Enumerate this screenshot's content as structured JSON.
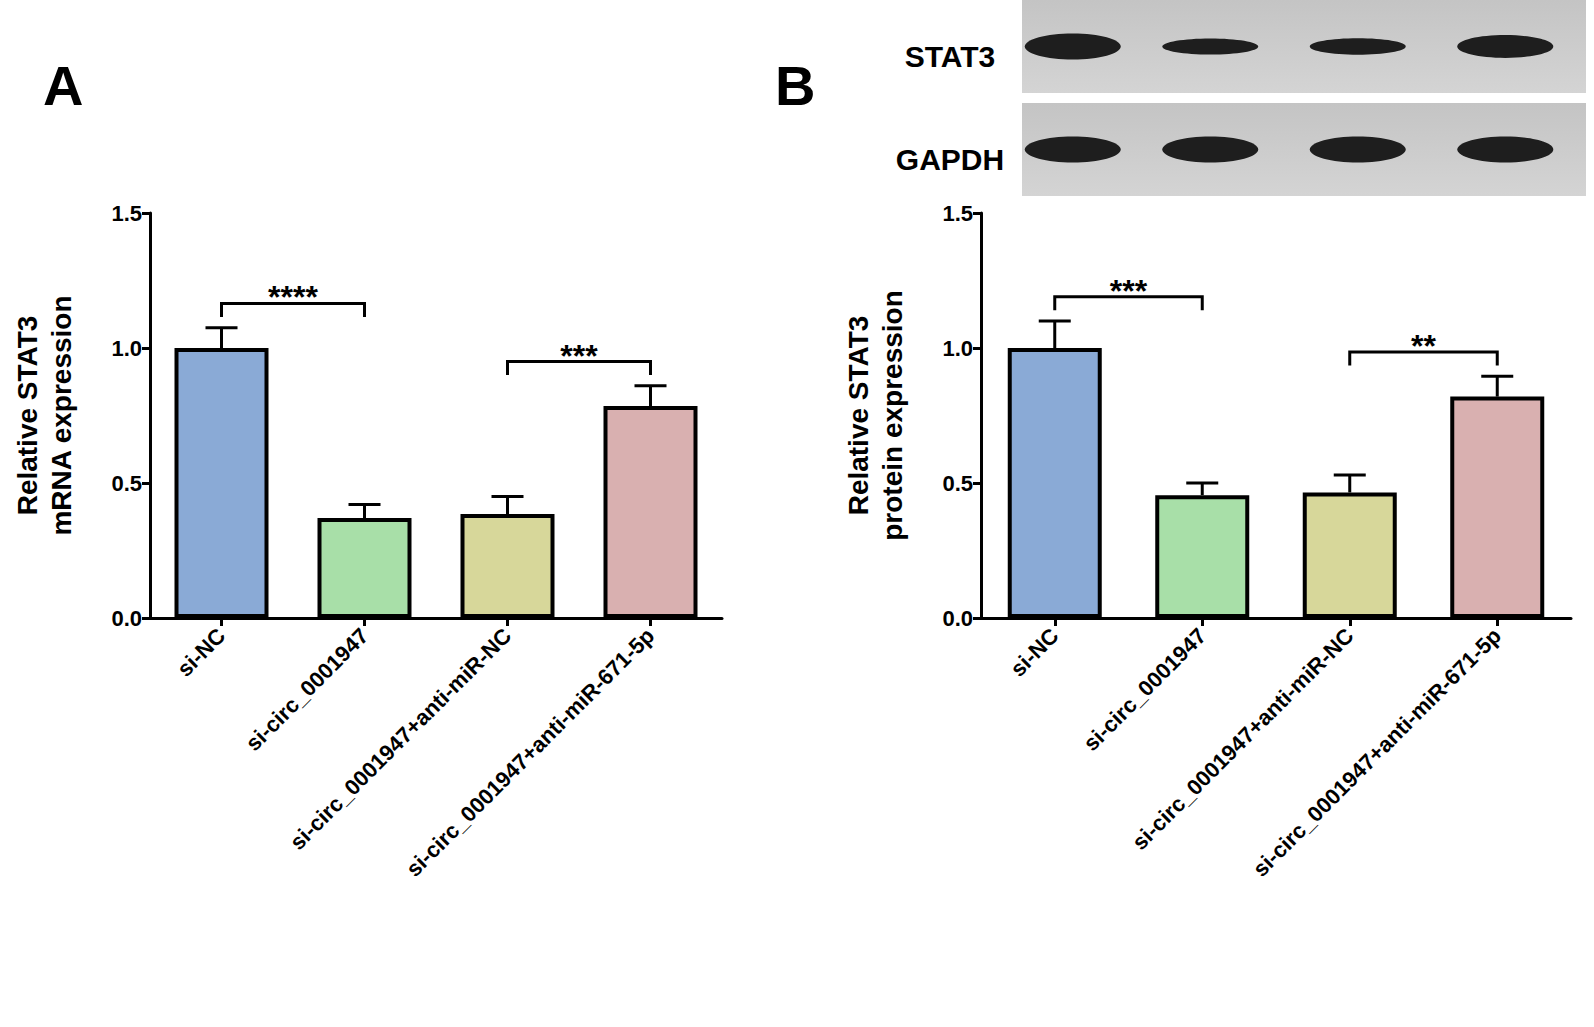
{
  "chart_data": [
    {
      "type": "bar",
      "title": "A",
      "y_label": "Relative STAT3\nmRNA expression",
      "categories": [
        "si-NC",
        "si-circ_0001947",
        "si-circ_0001947+anti-miR-NC",
        "si-circ_0001947+anti-miR-671-5p"
      ],
      "values": [
        1.0,
        0.37,
        0.385,
        0.785
      ],
      "errors": [
        0.075,
        0.05,
        0.065,
        0.075
      ],
      "colors": [
        "#8aaad6",
        "#a8dfa8",
        "#d7d79a",
        "#d9b0b0"
      ],
      "ylim": [
        0,
        1.5
      ],
      "yticks": [
        {
          "value": 0,
          "label": "0.0"
        },
        {
          "value": 0.5,
          "label": "0.5"
        },
        {
          "value": 1,
          "label": "1.0"
        },
        {
          "value": 1.5,
          "label": "1.5"
        }
      ],
      "grid": false,
      "annotations": [
        {
          "text": "****",
          "between": [
            "si-NC",
            "si-circ_0001947"
          ]
        },
        {
          "text": "***",
          "between": [
            "si-circ_0001947+anti-miR-NC",
            "si-circ_0001947+anti-miR-671-5p"
          ]
        }
      ]
    },
    {
      "type": "bar",
      "title": "B",
      "y_label": "Relative STAT3\nprotein expression",
      "categories": [
        "si-NC",
        "si-circ_0001947",
        "si-circ_0001947+anti-miR-NC",
        "si-circ_0001947+anti-miR-671-5p"
      ],
      "values": [
        1.0,
        0.455,
        0.465,
        0.82
      ],
      "errors": [
        0.1,
        0.045,
        0.065,
        0.075
      ],
      "colors": [
        "#8aaad6",
        "#a8dfa8",
        "#d7d79a",
        "#d9b0b0"
      ],
      "ylim": [
        0,
        1.5
      ],
      "yticks": [
        {
          "value": 0,
          "label": "0.0"
        },
        {
          "value": 0.5,
          "label": "0.5"
        },
        {
          "value": 1,
          "label": "1.0"
        },
        {
          "value": 1.5,
          "label": "1.5"
        }
      ],
      "grid": false,
      "annotations": [
        {
          "text": "***",
          "between": [
            "si-NC",
            "si-circ_0001947"
          ]
        },
        {
          "text": "**",
          "between": [
            "si-circ_0001947+anti-miR-NC",
            "si-circ_0001947+anti-miR-671-5p"
          ]
        }
      ],
      "blot": {
        "labels": [
          "STAT3",
          "GAPDH"
        ]
      }
    }
  ]
}
